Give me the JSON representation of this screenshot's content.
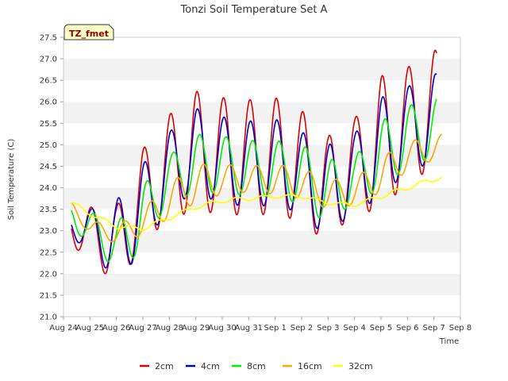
{
  "chart_data": {
    "type": "line",
    "title": "Tonzi Soil Temperature Set A",
    "badge": "TZ_fmet",
    "xlabel": "Time",
    "ylabel": "Soil Temperature (C)",
    "ylim": [
      21.0,
      27.5
    ],
    "yticks": [
      "21.0",
      "21.5",
      "22.0",
      "22.5",
      "23.0",
      "23.5",
      "24.0",
      "24.5",
      "25.0",
      "25.5",
      "26.0",
      "26.5",
      "27.0",
      "27.5"
    ],
    "xlim": [
      0,
      15
    ],
    "xticks": [
      "Aug 24",
      "Aug 25",
      "Aug 26",
      "Aug 27",
      "Aug 28",
      "Aug 29",
      "Aug 30",
      "Aug 31",
      "Sep 1",
      "Sep 2",
      "Sep 3",
      "Sep 4",
      "Sep 5",
      "Sep 6",
      "Sep 7",
      "Sep 8"
    ],
    "grid": "horizontal bands",
    "legend_position": "bottom",
    "series": [
      {
        "name": "2cm",
        "color": "#dd0000",
        "x_start": 0.3,
        "x_end": 14.1,
        "phase": 0.8,
        "base": [
          [
            0.3,
            23.05
          ],
          [
            1,
            23.0
          ],
          [
            2,
            22.6
          ],
          [
            3,
            23.8
          ],
          [
            4,
            24.5
          ],
          [
            5,
            24.85
          ],
          [
            6,
            24.75
          ],
          [
            7,
            24.7
          ],
          [
            8,
            24.75
          ],
          [
            9,
            24.5
          ],
          [
            10,
            23.95
          ],
          [
            11,
            24.55
          ],
          [
            12,
            25.0
          ],
          [
            13,
            25.5
          ],
          [
            14,
            25.8
          ],
          [
            14.1,
            25.8
          ]
        ],
        "amp": [
          [
            0.3,
            0.45
          ],
          [
            1,
            0.55
          ],
          [
            2,
            0.95
          ],
          [
            3,
            1.1
          ],
          [
            4,
            1.2
          ],
          [
            5,
            1.4
          ],
          [
            6,
            1.35
          ],
          [
            7,
            1.35
          ],
          [
            8,
            1.35
          ],
          [
            9,
            1.3
          ],
          [
            10,
            1.25
          ],
          [
            11,
            1.05
          ],
          [
            12,
            1.6
          ],
          [
            13,
            1.3
          ],
          [
            14,
            1.4
          ],
          [
            14.1,
            1.4
          ]
        ]
      },
      {
        "name": "4cm",
        "color": "#0000cc",
        "x_start": 0.3,
        "x_end": 14.1,
        "phase": 0.82,
        "base": [
          [
            0.3,
            23.1
          ],
          [
            1,
            23.05
          ],
          [
            2,
            22.75
          ],
          [
            3,
            23.55
          ],
          [
            4,
            24.45
          ],
          [
            5,
            24.85
          ],
          [
            6,
            24.65
          ],
          [
            7,
            24.55
          ],
          [
            8,
            24.6
          ],
          [
            9,
            24.35
          ],
          [
            10,
            23.9
          ],
          [
            11,
            24.4
          ],
          [
            12,
            24.9
          ],
          [
            13,
            25.4
          ],
          [
            14,
            25.6
          ],
          [
            14.1,
            25.6
          ]
        ],
        "amp": [
          [
            0.3,
            0.3
          ],
          [
            1,
            0.45
          ],
          [
            2,
            0.95
          ],
          [
            3,
            1.0
          ],
          [
            4,
            0.85
          ],
          [
            5,
            1.0
          ],
          [
            6,
            1.0
          ],
          [
            7,
            1.0
          ],
          [
            8,
            1.0
          ],
          [
            9,
            0.95
          ],
          [
            10,
            1.1
          ],
          [
            11,
            0.85
          ],
          [
            12,
            1.2
          ],
          [
            13,
            0.95
          ],
          [
            14,
            1.05
          ],
          [
            14.1,
            1.05
          ]
        ]
      },
      {
        "name": "8cm",
        "color": "#00ee00",
        "x_start": 0.3,
        "x_end": 14.1,
        "phase": 0.9,
        "base": [
          [
            0.3,
            23.3
          ],
          [
            1,
            23.1
          ],
          [
            2,
            22.6
          ],
          [
            3,
            23.3
          ],
          [
            4,
            24.25
          ],
          [
            5,
            24.55
          ],
          [
            6,
            24.55
          ],
          [
            7,
            24.45
          ],
          [
            8,
            24.45
          ],
          [
            9,
            24.3
          ],
          [
            10,
            23.9
          ],
          [
            11,
            24.2
          ],
          [
            12,
            24.75
          ],
          [
            13,
            25.2
          ],
          [
            14,
            25.4
          ],
          [
            14.1,
            25.4
          ]
        ],
        "amp": [
          [
            0.3,
            0.3
          ],
          [
            1,
            0.35
          ],
          [
            2,
            0.55
          ],
          [
            3,
            0.75
          ],
          [
            4,
            0.5
          ],
          [
            5,
            0.7
          ],
          [
            6,
            0.65
          ],
          [
            7,
            0.65
          ],
          [
            8,
            0.65
          ],
          [
            9,
            0.7
          ],
          [
            10,
            0.75
          ],
          [
            11,
            0.5
          ],
          [
            12,
            0.8
          ],
          [
            13,
            0.7
          ],
          [
            14,
            0.7
          ],
          [
            14.1,
            0.7
          ]
        ]
      },
      {
        "name": "16cm",
        "color": "#ffa500",
        "x_start": 0.3,
        "x_end": 14.3,
        "phase": 1.05,
        "base": [
          [
            0.3,
            23.5
          ],
          [
            1,
            23.1
          ],
          [
            2,
            22.9
          ],
          [
            3,
            23.2
          ],
          [
            4,
            23.7
          ],
          [
            5,
            24.1
          ],
          [
            6,
            24.2
          ],
          [
            7,
            24.2
          ],
          [
            8,
            24.2
          ],
          [
            9,
            24.1
          ],
          [
            10,
            23.85
          ],
          [
            11,
            23.9
          ],
          [
            12,
            24.3
          ],
          [
            13,
            24.75
          ],
          [
            14,
            24.9
          ],
          [
            14.3,
            25.05
          ]
        ],
        "amp": [
          [
            0.3,
            0.15
          ],
          [
            1,
            0.15
          ],
          [
            2,
            0.2
          ],
          [
            3,
            0.3
          ],
          [
            4,
            0.4
          ],
          [
            5,
            0.45
          ],
          [
            6,
            0.35
          ],
          [
            7,
            0.3
          ],
          [
            8,
            0.35
          ],
          [
            9,
            0.35
          ],
          [
            10,
            0.35
          ],
          [
            11,
            0.3
          ],
          [
            12,
            0.4
          ],
          [
            13,
            0.35
          ],
          [
            14,
            0.25
          ],
          [
            14.3,
            0.2
          ]
        ]
      },
      {
        "name": "32cm",
        "color": "#ffff00",
        "x_start": 0.3,
        "x_end": 14.3,
        "phase": 1.3,
        "base": [
          [
            0.3,
            23.65
          ],
          [
            1,
            23.4
          ],
          [
            2,
            23.1
          ],
          [
            3,
            23.05
          ],
          [
            4,
            23.3
          ],
          [
            5,
            23.55
          ],
          [
            6,
            23.7
          ],
          [
            7,
            23.75
          ],
          [
            8,
            23.8
          ],
          [
            9,
            23.8
          ],
          [
            10,
            23.65
          ],
          [
            11,
            23.6
          ],
          [
            12,
            23.8
          ],
          [
            13,
            24.0
          ],
          [
            14,
            24.2
          ],
          [
            14.3,
            24.25
          ]
        ],
        "amp": [
          [
            0.3,
            0.05
          ],
          [
            1,
            0.05
          ],
          [
            2,
            0.05
          ],
          [
            3,
            0.05
          ],
          [
            4,
            0.05
          ],
          [
            5,
            0.05
          ],
          [
            6,
            0.05
          ],
          [
            7,
            0.05
          ],
          [
            8,
            0.04
          ],
          [
            9,
            0.04
          ],
          [
            10,
            0.04
          ],
          [
            11,
            0.04
          ],
          [
            12,
            0.05
          ],
          [
            13,
            0.05
          ],
          [
            14,
            0.05
          ],
          [
            14.3,
            0.05
          ]
        ]
      }
    ]
  }
}
